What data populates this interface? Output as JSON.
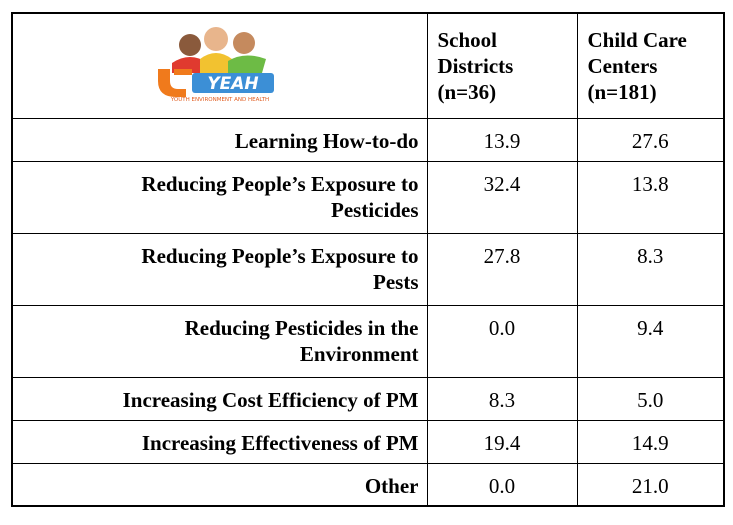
{
  "logo": {
    "brand": "YEAH",
    "tagline": "YOUTH ENVIRONMENT AND HEALTH"
  },
  "table": {
    "columns": [
      [
        "School",
        "Districts",
        "(n=36)"
      ],
      [
        "Child Care",
        "Centers",
        "(n=181)"
      ]
    ],
    "rows": [
      {
        "label": [
          "Learning How-to-do"
        ],
        "values": [
          "13.9",
          "27.6"
        ]
      },
      {
        "label": [
          "Reducing People’s Exposure to",
          "Pesticides"
        ],
        "values": [
          "32.4",
          "13.8"
        ]
      },
      {
        "label": [
          "Reducing People’s Exposure to",
          "Pests"
        ],
        "values": [
          "27.8",
          "8.3"
        ]
      },
      {
        "label": [
          "Reducing Pesticides in the",
          "Environment"
        ],
        "values": [
          "0.0",
          "9.4"
        ]
      },
      {
        "label": [
          "Increasing Cost Efficiency of PM"
        ],
        "values": [
          "8.3",
          "5.0"
        ]
      },
      {
        "label": [
          "Increasing Effectiveness of PM"
        ],
        "values": [
          "19.4",
          "14.9"
        ]
      },
      {
        "label": [
          "Other"
        ],
        "values": [
          "0.0",
          "21.0"
        ]
      }
    ]
  }
}
